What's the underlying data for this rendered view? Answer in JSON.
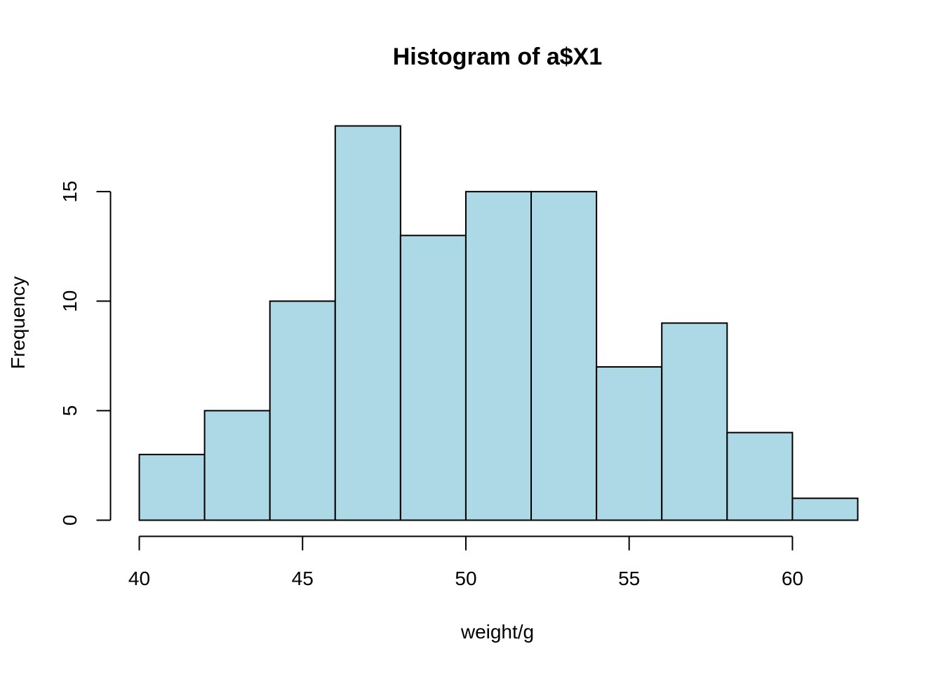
{
  "chart_data": {
    "type": "bar",
    "subtype": "histogram",
    "title": "Histogram of a$X1",
    "xlabel": "weight/g",
    "ylabel": "Frequency",
    "bin_edges": [
      40,
      42,
      44,
      46,
      48,
      50,
      52,
      54,
      56,
      58,
      60,
      62
    ],
    "values": [
      3,
      5,
      10,
      18,
      13,
      15,
      15,
      7,
      9,
      4,
      1
    ],
    "xlim": [
      40,
      62
    ],
    "ylim": [
      0,
      18
    ],
    "x_ticks": [
      40,
      45,
      50,
      55,
      60
    ],
    "y_ticks": [
      0,
      5,
      10,
      15
    ],
    "x_tick_labels": [
      "40",
      "45",
      "50",
      "55",
      "60"
    ],
    "y_tick_labels": [
      "0",
      "5",
      "10",
      "15"
    ],
    "grid": false,
    "legend": "none",
    "bar_color": "#ADD8E6",
    "edge_color": "#000000"
  }
}
